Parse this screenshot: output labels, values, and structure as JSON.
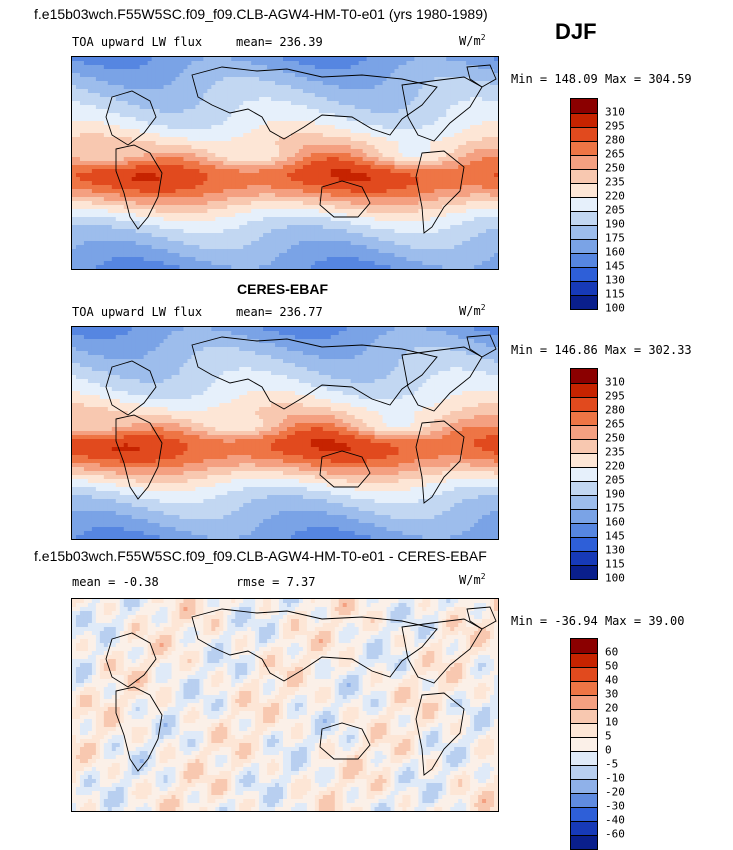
{
  "header": {
    "title": "f.e15b03wch.F55W5SC.f09_f09.CLB-AGW4-HM-T0-e01 (yrs 1980-1989)",
    "season": "DJF"
  },
  "chart_data": [
    {
      "type": "heatmap",
      "name": "model",
      "title": "f.e15b03wch.F55W5SC.f09_f09.CLB-AGW4-HM-T0-e01 (yrs 1980-1989)",
      "field": "TOA upward LW flux",
      "mean_label": "mean=",
      "mean": "236.39",
      "units": "W/m",
      "units_sup": "2",
      "min_label": "Min =",
      "min": "148.09",
      "max_label": "Max =",
      "max": "304.59",
      "levels": [
        "310",
        "295",
        "280",
        "265",
        "250",
        "235",
        "220",
        "205",
        "190",
        "175",
        "160",
        "145",
        "130",
        "115",
        "100"
      ],
      "colors": [
        "#8b0000",
        "#c62300",
        "#e14a1e",
        "#ee7545",
        "#f4a081",
        "#f8c8b0",
        "#fde6d6",
        "#e6f0fb",
        "#c2d7f2",
        "#9dbdec",
        "#7aa3e6",
        "#5686e1",
        "#2e5fd8",
        "#173ab8",
        "#0a1f8c"
      ]
    },
    {
      "type": "heatmap",
      "name": "observation",
      "title": "CERES-EBAF",
      "field": "TOA upward LW flux",
      "mean_label": "mean=",
      "mean": "236.77",
      "units": "W/m",
      "units_sup": "2",
      "min_label": "Min =",
      "min": "146.86",
      "max_label": "Max =",
      "max": "302.33",
      "levels": [
        "310",
        "295",
        "280",
        "265",
        "250",
        "235",
        "220",
        "205",
        "190",
        "175",
        "160",
        "145",
        "130",
        "115",
        "100"
      ],
      "colors": [
        "#8b0000",
        "#c62300",
        "#e14a1e",
        "#ee7545",
        "#f4a081",
        "#f8c8b0",
        "#fde6d6",
        "#e6f0fb",
        "#c2d7f2",
        "#9dbdec",
        "#7aa3e6",
        "#5686e1",
        "#2e5fd8",
        "#173ab8",
        "#0a1f8c"
      ]
    },
    {
      "type": "heatmap",
      "name": "difference",
      "title": "f.e15b03wch.F55W5SC.f09_f09.CLB-AGW4-HM-T0-e01 - CERES-EBAF",
      "mean_label": "mean =",
      "mean": "-0.38",
      "rmse_label": "rmse =",
      "rmse": "7.37",
      "units": "W/m",
      "units_sup": "2",
      "min_label": "Min =",
      "min": "-36.94",
      "max_label": "Max =",
      "max": "39.00",
      "levels": [
        "60",
        "50",
        "40",
        "30",
        "20",
        "10",
        "5",
        "0",
        "-5",
        "-10",
        "-20",
        "-30",
        "-40",
        "-60"
      ],
      "colors": [
        "#8b0000",
        "#c62300",
        "#e14a1e",
        "#ee7545",
        "#f4a081",
        "#f8c8b0",
        "#fde6d6",
        "#fbf0e8",
        "#dfeaf8",
        "#b8cff0",
        "#8fb1e9",
        "#5f8be0",
        "#2e5fd8",
        "#173ab8",
        "#0a1f8c"
      ]
    }
  ]
}
